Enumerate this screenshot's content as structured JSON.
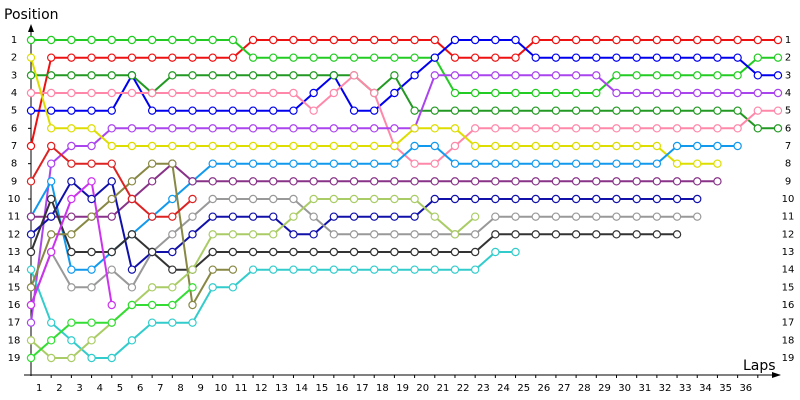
{
  "chart_data": {
    "type": "line",
    "y_label": "Position",
    "x_label": "Laps",
    "xlim": [
      0,
      37
    ],
    "xticks": [
      1,
      2,
      3,
      4,
      5,
      6,
      7,
      8,
      9,
      10,
      11,
      12,
      13,
      14,
      15,
      16,
      17,
      18,
      19,
      20,
      21,
      22,
      23,
      24,
      25,
      26,
      27,
      28,
      29,
      30,
      31,
      32,
      33,
      34,
      35,
      36
    ],
    "ylim": [
      19,
      1
    ],
    "yticks": [
      1,
      2,
      3,
      4,
      5,
      6,
      7,
      8,
      9,
      10,
      11,
      12,
      13,
      14,
      15,
      16,
      17,
      18,
      19
    ],
    "series": [
      {
        "color": "#ee1111",
        "values": [
          7,
          2,
          2,
          2,
          2,
          2,
          2,
          2,
          2,
          2,
          2,
          1,
          1,
          1,
          1,
          1,
          1,
          1,
          1,
          1,
          1,
          2,
          2,
          2,
          2,
          1,
          1,
          1,
          1,
          1,
          1,
          1,
          1,
          1,
          1,
          1,
          1,
          1
        ]
      },
      {
        "color": "#22cc22",
        "values": [
          1,
          1,
          1,
          1,
          1,
          1,
          1,
          1,
          1,
          1,
          1,
          2,
          2,
          2,
          2,
          2,
          2,
          2,
          2,
          2,
          2,
          4,
          4,
          4,
          4,
          4,
          4,
          4,
          4,
          3,
          3,
          3,
          3,
          3,
          3,
          3,
          2,
          2
        ]
      },
      {
        "color": "#0000ee",
        "values": [
          5,
          5,
          5,
          5,
          5,
          3,
          5,
          5,
          5,
          5,
          5,
          5,
          5,
          5,
          4,
          3,
          5,
          5,
          4,
          3,
          2,
          1,
          1,
          1,
          1,
          2,
          2,
          2,
          2,
          2,
          2,
          2,
          2,
          2,
          2,
          2,
          3,
          3
        ]
      },
      {
        "color": "#229922",
        "values": [
          3,
          3,
          3,
          3,
          3,
          3,
          4,
          3,
          3,
          3,
          3,
          3,
          3,
          3,
          3,
          3,
          3,
          4,
          3,
          5,
          5,
          5,
          5,
          5,
          5,
          5,
          5,
          5,
          5,
          5,
          5,
          5,
          5,
          5,
          5,
          5,
          6,
          6
        ]
      },
      {
        "color": "#ff88aa",
        "values": [
          4,
          4,
          4,
          4,
          4,
          4,
          4,
          4,
          4,
          4,
          4,
          4,
          4,
          4,
          5,
          4,
          3,
          4,
          7,
          8,
          8,
          7,
          6,
          6,
          6,
          6,
          6,
          6,
          6,
          6,
          6,
          6,
          6,
          6,
          6,
          6,
          5,
          5
        ]
      },
      {
        "color": "#aa44ee",
        "values": [
          17,
          8,
          7,
          7,
          6,
          6,
          6,
          6,
          6,
          6,
          6,
          6,
          6,
          6,
          6,
          6,
          6,
          6,
          6,
          6,
          3,
          3,
          3,
          3,
          3,
          3,
          3,
          3,
          3,
          4,
          4,
          4,
          4,
          4,
          4,
          4,
          4,
          4
        ]
      },
      {
        "color": "#dddd00",
        "values": [
          2,
          6,
          6,
          6,
          7,
          7,
          7,
          7,
          7,
          7,
          7,
          7,
          7,
          7,
          7,
          7,
          7,
          7,
          7,
          6,
          6,
          6,
          7,
          7,
          7,
          7,
          7,
          7,
          7,
          7,
          7,
          7,
          8,
          8,
          8,
          null,
          null,
          null
        ]
      },
      {
        "color": "#1199ee",
        "values": [
          11,
          9,
          14,
          14,
          13,
          12,
          11,
          10,
          9,
          8,
          8,
          8,
          8,
          8,
          8,
          8,
          8,
          8,
          8,
          7,
          7,
          8,
          8,
          8,
          8,
          8,
          8,
          8,
          8,
          8,
          8,
          8,
          7,
          7,
          7,
          7,
          null,
          null
        ]
      },
      {
        "color": "#883388",
        "values": [
          11,
          11,
          11,
          11,
          11,
          10,
          9,
          8,
          9,
          9,
          9,
          9,
          9,
          9,
          9,
          9,
          9,
          9,
          9,
          9,
          9,
          9,
          9,
          9,
          9,
          9,
          9,
          9,
          9,
          9,
          9,
          9,
          9,
          9,
          9,
          null,
          null,
          null
        ]
      },
      {
        "color": "#1111aa",
        "values": [
          12,
          11,
          9,
          10,
          9,
          14,
          13,
          13,
          12,
          11,
          11,
          11,
          11,
          12,
          12,
          11,
          11,
          11,
          11,
          11,
          10,
          10,
          10,
          10,
          10,
          10,
          10,
          10,
          10,
          10,
          10,
          10,
          10,
          10,
          null,
          null,
          null,
          null
        ]
      },
      {
        "color": "#999999",
        "values": [
          16,
          13,
          15,
          15,
          14,
          15,
          13,
          12,
          11,
          10,
          10,
          10,
          10,
          10,
          11,
          12,
          12,
          12,
          12,
          12,
          12,
          12,
          12,
          11,
          11,
          11,
          11,
          11,
          11,
          11,
          11,
          11,
          11,
          11,
          null,
          null,
          null,
          null
        ]
      },
      {
        "color": "#333333",
        "values": [
          13,
          10,
          13,
          13,
          13,
          12,
          13,
          14,
          14,
          13,
          13,
          13,
          13,
          13,
          13,
          13,
          13,
          13,
          13,
          13,
          13,
          13,
          13,
          12,
          12,
          12,
          12,
          12,
          12,
          12,
          12,
          12,
          12,
          null,
          null,
          null,
          null,
          null
        ]
      },
      {
        "color": "#33cccc",
        "values": [
          14,
          17,
          18,
          19,
          19,
          18,
          17,
          17,
          17,
          15,
          15,
          14,
          14,
          14,
          14,
          14,
          14,
          14,
          14,
          14,
          14,
          14,
          14,
          13,
          13,
          null,
          null,
          null,
          null,
          null,
          null,
          null,
          null,
          null,
          null,
          null,
          null,
          null
        ]
      },
      {
        "color": "#888844",
        "values": [
          15,
          12,
          12,
          11,
          10,
          9,
          8,
          8,
          16,
          14,
          14,
          null,
          null,
          null,
          null,
          null,
          null,
          null,
          null,
          null,
          null,
          null,
          null,
          null,
          null,
          null,
          null,
          null,
          null,
          null,
          null,
          null,
          null,
          null,
          null,
          null,
          null,
          null
        ]
      },
      {
        "color": "#aacc66",
        "values": [
          18,
          19,
          19,
          18,
          17,
          16,
          15,
          15,
          14,
          12,
          12,
          12,
          12,
          11,
          10,
          10,
          10,
          10,
          10,
          10,
          11,
          12,
          11,
          null,
          null,
          null,
          null,
          null,
          null,
          null,
          null,
          null,
          null,
          null,
          null,
          null,
          null,
          null
        ]
      },
      {
        "color": "#cc33ee",
        "values": [
          16,
          13,
          10,
          9,
          16,
          null,
          null,
          null,
          null,
          null,
          null,
          null,
          null,
          null,
          null,
          null,
          null,
          null,
          null,
          null,
          null,
          null,
          null,
          null,
          null,
          null,
          null,
          null,
          null,
          null,
          null,
          null,
          null,
          null,
          null,
          null,
          null,
          null
        ]
      },
      {
        "color": "#33dd33",
        "values": [
          19,
          18,
          17,
          17,
          17,
          16,
          16,
          16,
          15,
          null,
          null,
          null,
          null,
          null,
          null,
          null,
          null,
          null,
          null,
          null,
          null,
          null,
          null,
          null,
          null,
          null,
          null,
          null,
          null,
          null,
          null,
          null,
          null,
          null,
          null,
          null,
          null,
          null
        ]
      },
      {
        "color": "#dd2222",
        "values": [
          9,
          7,
          8,
          8,
          8,
          10,
          11,
          11,
          10,
          null,
          null,
          null,
          null,
          null,
          null,
          null,
          null,
          null,
          null,
          null,
          null,
          null,
          null,
          null,
          null,
          null,
          null,
          null,
          null,
          null,
          null,
          null,
          null,
          null,
          null,
          null,
          null,
          null
        ]
      }
    ]
  }
}
